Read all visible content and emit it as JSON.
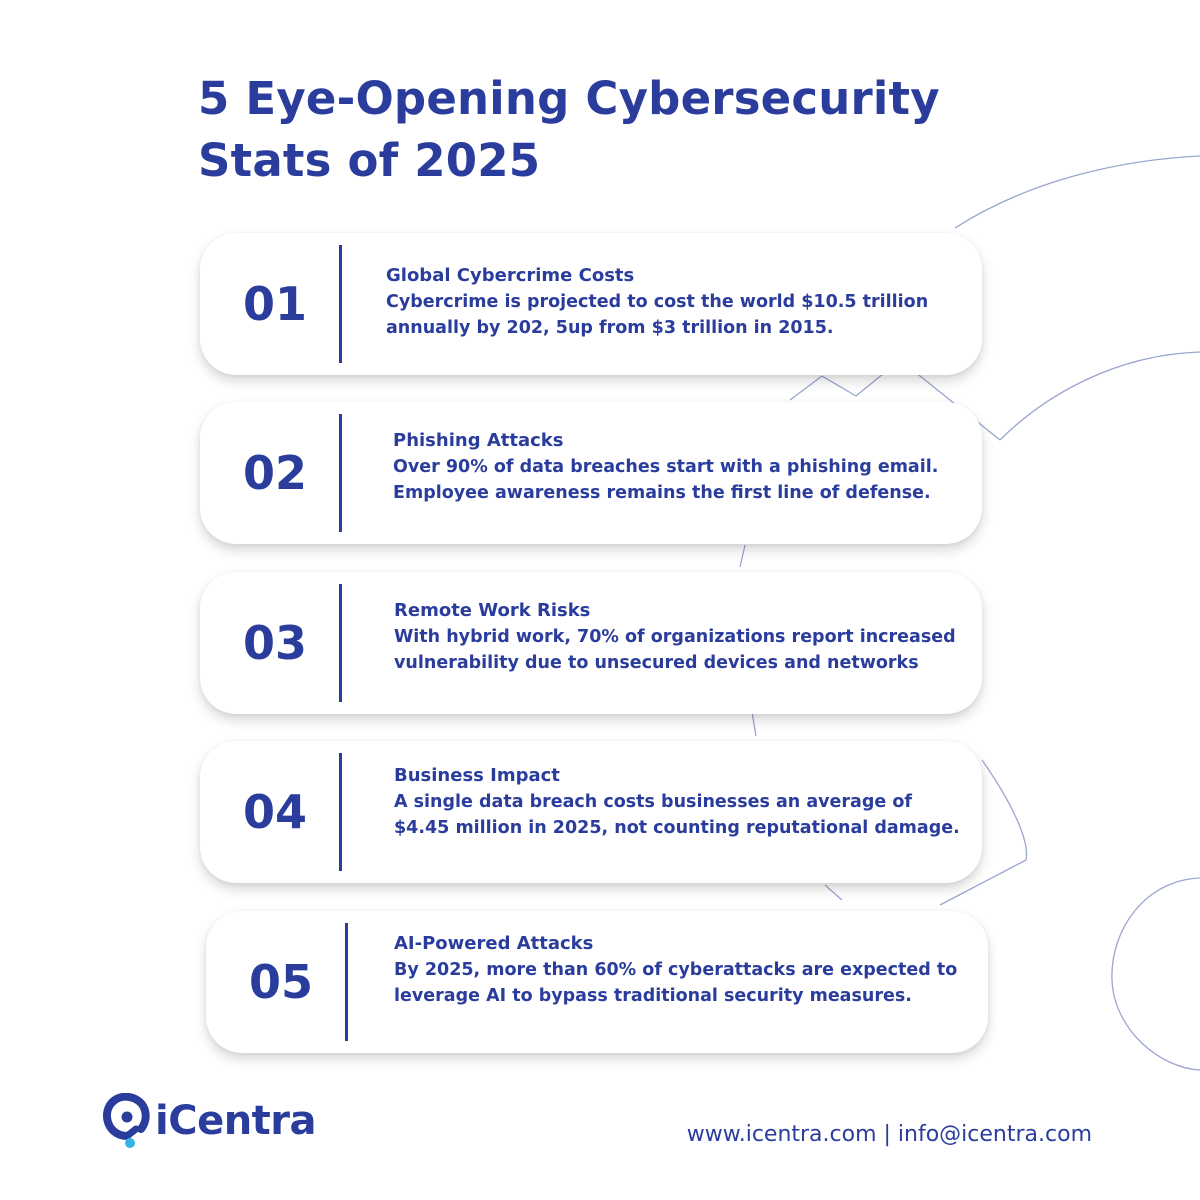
{
  "title": "5 Eye-Opening Cybersecurity Stats of 2025",
  "colors": {
    "primary": "#2b3d9c",
    "accent": "#36b3e6",
    "background": "#ffffff"
  },
  "stats": [
    {
      "number": "01",
      "heading": "Global Cybercrime Costs",
      "body": "Cybercrime is projected to cost the world $10.5 trillion annually by 202, 5up from $3 trillion in 2015."
    },
    {
      "number": "02",
      "heading": "Phishing Attacks",
      "body": "Over 90% of data breaches start with a phishing email. Employee awareness remains the first line of defense."
    },
    {
      "number": "03",
      "heading": "Remote Work Risks",
      "body": "With hybrid work, 70% of organizations report increased vulnerability due to unsecured devices and networks"
    },
    {
      "number": "04",
      "heading": "Business Impact",
      "body": "A single data breach costs businesses an average of $4.45 million in 2025, not counting reputational damage."
    },
    {
      "number": "05",
      "heading": "AI-Powered Attacks",
      "body": "By 2025, more than 60% of cyberattacks are expected to leverage AI to bypass traditional security measures."
    }
  ],
  "brand": {
    "name": "iCentra",
    "logo_icon": "icentra-logo-icon"
  },
  "footer": {
    "contact": "www.icentra.com | info@icentra.com"
  }
}
